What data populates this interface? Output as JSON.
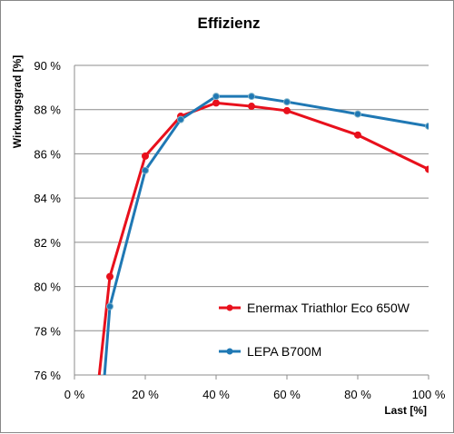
{
  "chart_data": {
    "type": "line",
    "title": "Effizienz",
    "xlabel": "Last [%]",
    "ylabel": "Wirkungsgrad [%]",
    "xlim": [
      0,
      100
    ],
    "ylim": [
      76,
      90
    ],
    "x_ticks": [
      "0 %",
      "20 %",
      "40 %",
      "60 %",
      "80 %",
      "100 %"
    ],
    "y_ticks": [
      "76 %",
      "78 %",
      "80 %",
      "82 %",
      "84 %",
      "86 %",
      "88 %",
      "90 %"
    ],
    "grid": "horizontal",
    "legend_position": "bottom-right",
    "series": [
      {
        "name": "Enermax Triathlor Eco 650W",
        "color": "#e8101c",
        "points": [
          [
            7,
            76.0
          ],
          [
            10,
            80.45
          ],
          [
            20,
            85.9
          ],
          [
            30,
            87.7
          ],
          [
            40,
            88.3
          ],
          [
            50,
            88.15
          ],
          [
            60,
            87.95
          ],
          [
            80,
            86.85
          ],
          [
            100,
            85.3
          ]
        ]
      },
      {
        "name": "LEPA B700M",
        "color": "#1f78b4",
        "points": [
          [
            8.5,
            76.0
          ],
          [
            10,
            79.1
          ],
          [
            20,
            85.25
          ],
          [
            30,
            87.55
          ],
          [
            40,
            88.6
          ],
          [
            50,
            88.6
          ],
          [
            60,
            88.35
          ],
          [
            80,
            87.8
          ],
          [
            100,
            87.25
          ]
        ]
      }
    ]
  }
}
